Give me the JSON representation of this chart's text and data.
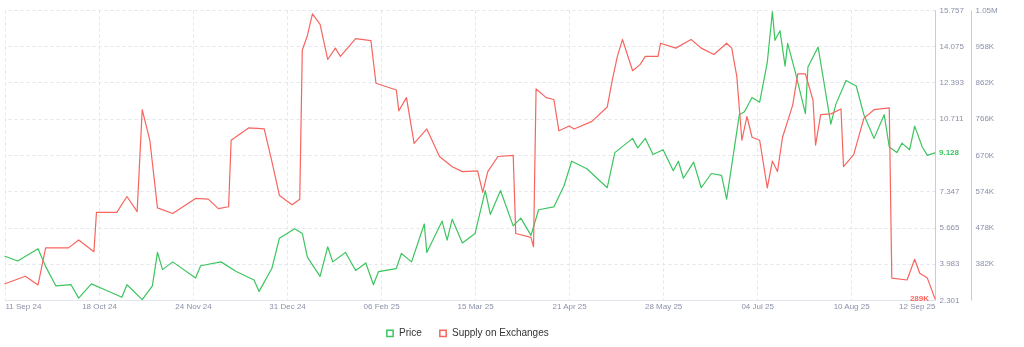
{
  "chart_data": {
    "type": "line",
    "xlim": [
      "2024-09-11",
      "2025-09-12"
    ],
    "xticks": [
      {
        "value": "2024-09-11",
        "label": "11 Sep 24"
      },
      {
        "value": "2024-10-18",
        "label": "18 Oct 24"
      },
      {
        "value": "2024-11-24",
        "label": "24 Nov 24"
      },
      {
        "value": "2024-12-31",
        "label": "31 Dec 24"
      },
      {
        "value": "2025-02-06",
        "label": "06 Feb 25"
      },
      {
        "value": "2025-03-15",
        "label": "15 Mar 25"
      },
      {
        "value": "2025-04-21",
        "label": "21 Apr 25"
      },
      {
        "value": "2025-05-28",
        "label": "28 May 25"
      },
      {
        "value": "2025-07-04",
        "label": "04 Jul 25"
      },
      {
        "value": "2025-08-10",
        "label": "10 Aug 25"
      },
      {
        "value": "2025-09-12",
        "label": "12 Sep 25"
      }
    ],
    "ylim": [
      2.301,
      15.757
    ],
    "yticks": [
      2.301,
      3.983,
      5.665,
      7.347,
      {
        "value": 9.029,
        "label": null
      },
      10.711,
      12.393,
      14.075,
      15.757
    ],
    "y2lim": [
      286000,
      1054000
    ],
    "y2ticks": [
      {
        "value": 286000,
        "label": null
      },
      {
        "value": 382000,
        "label": "382K"
      },
      {
        "value": 478000,
        "label": "478K"
      },
      {
        "value": 574000,
        "label": "574K"
      },
      {
        "value": 670000,
        "label": "670K"
      },
      {
        "value": 766000,
        "label": "766K"
      },
      {
        "value": 862000,
        "label": "862K"
      },
      {
        "value": 958000,
        "label": "958K"
      },
      {
        "value": 1054000,
        "label": "1.05M"
      }
    ],
    "grid": true,
    "legend": "bottom",
    "series": [
      {
        "name": "Price",
        "color": "#3cc55f",
        "x": [
          "2024-09-11",
          "2024-09-16",
          "2024-09-24",
          "2024-09-27",
          "2024-10-01",
          "2024-10-07",
          "2024-10-10",
          "2024-10-15",
          "2024-10-21",
          "2024-10-27",
          "2024-10-29",
          "2024-11-04",
          "2024-11-08",
          "2024-11-10",
          "2024-11-12",
          "2024-11-16",
          "2024-11-25",
          "2024-11-27",
          "2024-12-05",
          "2024-12-11",
          "2024-12-18",
          "2024-12-20",
          "2024-12-25",
          "2024-12-28",
          "2025-01-03",
          "2025-01-06",
          "2025-01-08",
          "2025-01-13",
          "2025-01-16",
          "2025-01-18",
          "2025-01-23",
          "2025-01-27",
          "2025-01-31",
          "2025-02-03",
          "2025-02-05",
          "2025-02-12",
          "2025-02-14",
          "2025-02-18",
          "2025-02-23",
          "2025-02-24",
          "2025-03-02",
          "2025-03-04",
          "2025-03-06",
          "2025-03-10",
          "2025-03-15",
          "2025-03-19",
          "2025-03-21",
          "2025-03-25",
          "2025-03-30",
          "2025-04-02",
          "2025-04-06",
          "2025-04-09",
          "2025-04-15",
          "2025-04-19",
          "2025-04-22",
          "2025-04-28",
          "2025-05-06",
          "2025-05-09",
          "2025-05-16",
          "2025-05-18",
          "2025-05-21",
          "2025-05-24",
          "2025-05-28",
          "2025-06-01",
          "2025-06-03",
          "2025-06-05",
          "2025-06-09",
          "2025-06-12",
          "2025-06-16",
          "2025-06-20",
          "2025-06-22",
          "2025-06-27",
          "2025-06-29",
          "2025-07-02",
          "2025-07-05",
          "2025-07-08",
          "2025-07-10",
          "2025-07-11",
          "2025-07-13",
          "2025-07-15",
          "2025-07-16",
          "2025-07-19",
          "2025-07-23",
          "2025-07-24",
          "2025-07-28",
          "2025-08-02",
          "2025-08-04",
          "2025-08-08",
          "2025-08-12",
          "2025-08-15",
          "2025-08-19",
          "2025-08-23",
          "2025-08-25",
          "2025-08-28",
          "2025-08-30",
          "2025-09-02",
          "2025-09-04",
          "2025-09-07",
          "2025-09-09",
          "2025-09-12"
        ],
        "values": [
          4.33,
          4.11,
          4.68,
          3.85,
          2.96,
          3.01,
          2.39,
          3.05,
          2.74,
          2.43,
          3.01,
          2.32,
          2.96,
          4.51,
          3.71,
          4.07,
          3.32,
          3.89,
          4.07,
          3.62,
          3.23,
          2.7,
          3.76,
          5.17,
          5.61,
          5.39,
          4.29,
          3.4,
          4.77,
          4.07,
          4.51,
          3.67,
          4.02,
          3.01,
          3.62,
          3.76,
          4.46,
          4.07,
          5.83,
          4.51,
          5.96,
          5.08,
          6.05,
          4.95,
          5.39,
          7.38,
          6.27,
          7.38,
          5.74,
          6.1,
          5.3,
          6.49,
          6.62,
          7.6,
          8.74,
          8.39,
          7.51,
          9.14,
          9.8,
          9.36,
          9.8,
          9.05,
          9.27,
          8.3,
          8.74,
          7.95,
          8.7,
          7.51,
          8.17,
          8.08,
          6.98,
          10.9,
          11.04,
          11.7,
          11.48,
          13.33,
          15.67,
          14.35,
          14.79,
          13.15,
          14.21,
          12.89,
          10.95,
          13.11,
          14.04,
          10.46,
          11.39,
          12.49,
          12.23,
          10.9,
          9.8,
          10.9,
          9.4,
          9.14,
          9.58,
          9.27,
          10.37,
          9.4,
          9.01,
          9.128
        ],
        "value_labels": [
          null,
          null,
          null,
          null,
          null,
          null,
          null,
          null,
          null,
          null,
          null,
          null,
          null,
          null,
          null,
          null,
          null,
          null,
          null,
          null,
          null,
          null,
          null,
          null,
          null,
          null,
          null,
          null,
          null,
          null,
          null,
          null,
          null,
          null,
          null,
          null,
          null,
          null,
          null,
          null,
          null,
          null,
          null,
          null,
          null,
          null,
          null,
          null,
          null,
          null,
          null,
          null,
          null,
          null,
          null,
          null,
          null,
          null,
          null,
          null,
          null,
          null,
          null,
          null,
          null,
          null,
          null,
          null,
          null,
          null,
          null,
          null,
          null,
          null,
          null,
          null,
          null,
          null,
          null,
          null,
          null,
          null,
          null,
          null,
          null,
          null,
          null,
          null,
          null,
          null,
          null,
          null,
          null,
          null,
          null,
          null,
          null,
          null,
          null,
          "9.128"
        ]
      },
      {
        "name": "Supply on Exchanges",
        "color": "#f7655f",
        "axis": "y2",
        "x": [
          "2024-09-11",
          "2024-09-19",
          "2024-09-24",
          "2024-09-27",
          "2024-10-06",
          "2024-10-10",
          "2024-10-16",
          "2024-10-17",
          "2024-10-25",
          "2024-10-29",
          "2024-11-02",
          "2024-11-04",
          "2024-11-07",
          "2024-11-10",
          "2024-11-16",
          "2024-11-25",
          "2024-11-30",
          "2024-12-04",
          "2024-12-08",
          "2024-12-09",
          "2024-12-16",
          "2024-12-22",
          "2024-12-25",
          "2024-12-28",
          "2025-01-02",
          "2025-01-05",
          "2025-01-06",
          "2025-01-08",
          "2025-01-10",
          "2025-01-13",
          "2025-01-16",
          "2025-01-19",
          "2025-01-21",
          "2025-01-27",
          "2025-02-02",
          "2025-02-04",
          "2025-02-12",
          "2025-02-13",
          "2025-02-16",
          "2025-02-19",
          "2025-02-24",
          "2025-03-01",
          "2025-03-06",
          "2025-03-10",
          "2025-03-16",
          "2025-03-18",
          "2025-03-20",
          "2025-03-24",
          "2025-03-30",
          "2025-03-31",
          "2025-04-06",
          "2025-04-07",
          "2025-04-08",
          "2025-04-12",
          "2025-04-15",
          "2025-04-17",
          "2025-04-21",
          "2025-04-23",
          "2025-04-30",
          "2025-05-06",
          "2025-05-08",
          "2025-05-10",
          "2025-05-12",
          "2025-05-16",
          "2025-05-19",
          "2025-05-21",
          "2025-05-26",
          "2025-05-27",
          "2025-06-02",
          "2025-06-08",
          "2025-06-12",
          "2025-06-17",
          "2025-06-22",
          "2025-06-24",
          "2025-06-26",
          "2025-06-28",
          "2025-06-30",
          "2025-07-02",
          "2025-07-05",
          "2025-07-08",
          "2025-07-10",
          "2025-07-12",
          "2025-07-14",
          "2025-07-18",
          "2025-07-20",
          "2025-07-23",
          "2025-07-26",
          "2025-07-27",
          "2025-07-29",
          "2025-08-02",
          "2025-08-06",
          "2025-08-07",
          "2025-08-11",
          "2025-08-15",
          "2025-08-19",
          "2025-08-25",
          "2025-08-26",
          "2025-09-01",
          "2025-09-04",
          "2025-09-06",
          "2025-09-09",
          "2025-09-12"
        ],
        "values": [
          329000,
          349000,
          326000,
          424000,
          424000,
          445000,
          414000,
          518000,
          518000,
          560000,
          520000,
          790000,
          709000,
          530000,
          515000,
          555000,
          553000,
          528000,
          533000,
          709000,
          742000,
          739000,
          654000,
          563000,
          538000,
          553000,
          948000,
          986000,
          1044000,
          1016000,
          923000,
          953000,
          931000,
          978000,
          973000,
          860000,
          842000,
          787000,
          822000,
          701000,
          739000,
          666000,
          639000,
          626000,
          628000,
          571000,
          626000,
          666000,
          669000,
          462000,
          452000,
          427000,
          845000,
          822000,
          817000,
          734000,
          747000,
          739000,
          759000,
          797000,
          868000,
          931000,
          976000,
          893000,
          910000,
          931000,
          931000,
          966000,
          953000,
          976000,
          953000,
          936000,
          966000,
          953000,
          878000,
          709000,
          772000,
          717000,
          709000,
          583000,
          654000,
          626000,
          717000,
          802000,
          885000,
          885000,
          815000,
          696000,
          777000,
          779000,
          792000,
          639000,
          671000,
          767000,
          790000,
          795000,
          344000,
          339000,
          394000,
          357000,
          344000,
          289000
        ],
        "value_labels": [
          null,
          null,
          null,
          null,
          null,
          null,
          null,
          null,
          null,
          null,
          null,
          null,
          null,
          null,
          null,
          null,
          null,
          null,
          null,
          null,
          null,
          null,
          null,
          null,
          null,
          null,
          null,
          null,
          null,
          null,
          null,
          null,
          null,
          null,
          null,
          null,
          null,
          null,
          null,
          null,
          null,
          null,
          null,
          null,
          null,
          null,
          null,
          null,
          null,
          null,
          null,
          null,
          null,
          null,
          null,
          null,
          null,
          null,
          null,
          null,
          null,
          null,
          null,
          null,
          null,
          null,
          null,
          null,
          null,
          null,
          null,
          null,
          null,
          null,
          null,
          null,
          null,
          null,
          null,
          null,
          null,
          null,
          null,
          null,
          null,
          null,
          null,
          null,
          null,
          null,
          null,
          null,
          null,
          null,
          null,
          null,
          null,
          null,
          null,
          null,
          null,
          "289K"
        ]
      }
    ]
  }
}
